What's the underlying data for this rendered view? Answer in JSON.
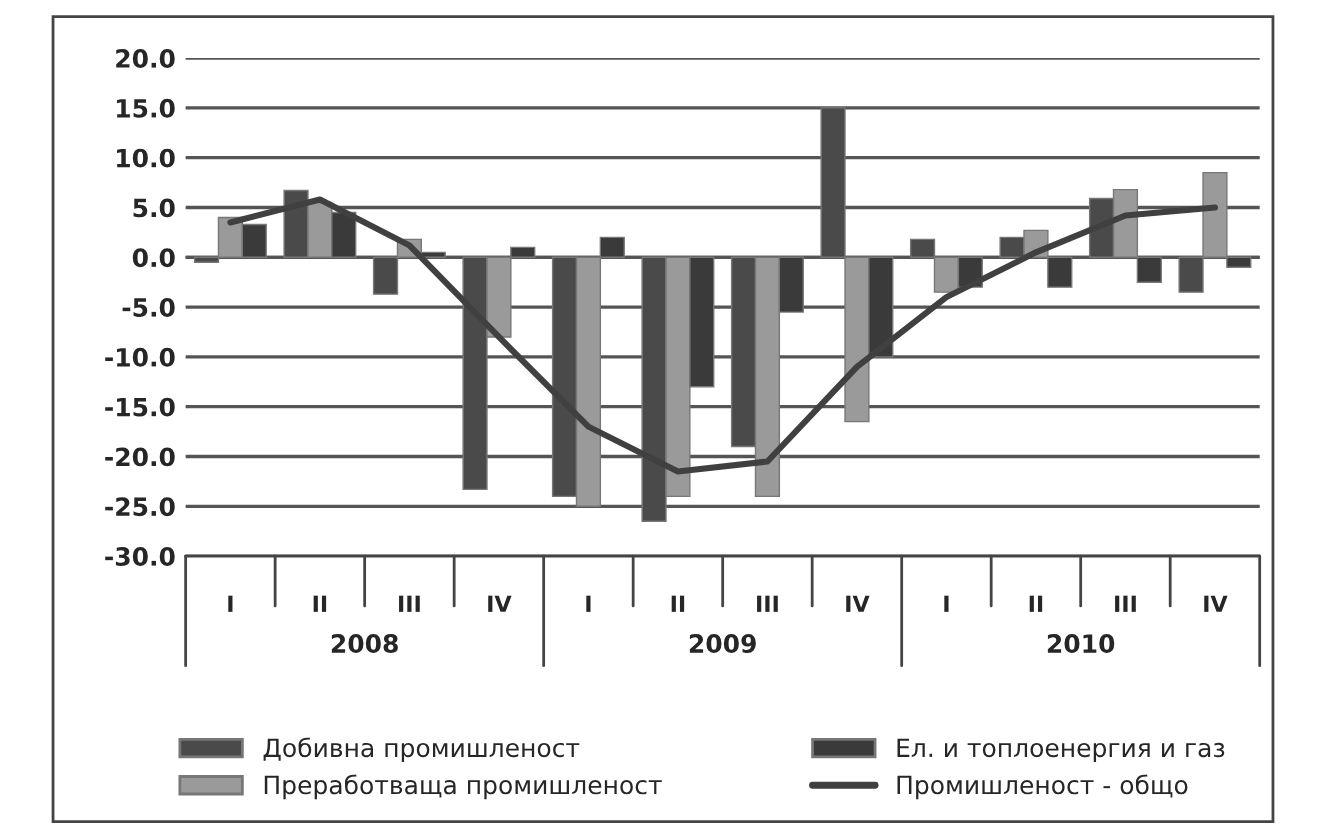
{
  "chart_data": {
    "type": "bar",
    "categories": [
      "I",
      "II",
      "III",
      "IV",
      "I",
      "II",
      "III",
      "IV",
      "I",
      "II",
      "III",
      "IV"
    ],
    "series": [
      {
        "name": "Добивна промишленост",
        "color": "#4a4a4a",
        "values": [
          -0.5,
          6.7,
          -3.7,
          -23.3,
          -24.0,
          -26.5,
          -19.0,
          15.0,
          1.8,
          2.0,
          5.9,
          -3.5
        ]
      },
      {
        "name": "Преработваща промишленост",
        "color": "#9a9a9a",
        "values": [
          4.0,
          5.5,
          1.8,
          -8.0,
          -25.0,
          -24.0,
          -24.0,
          -16.5,
          -3.5,
          2.7,
          6.8,
          8.5
        ]
      },
      {
        "name": "Ел. и топлоенергия и газ",
        "color": "#3a3a3a",
        "values": [
          3.3,
          4.5,
          0.5,
          1.0,
          2.0,
          -13.0,
          -5.5,
          -10.0,
          -3.0,
          -3.0,
          -2.5,
          -1.0
        ]
      },
      {
        "name": "Промишленост - общо",
        "type": "line",
        "color": "#404040",
        "values": [
          3.5,
          5.8,
          1.2,
          -8.0,
          -17.0,
          -21.5,
          -20.5,
          -11.0,
          -4.0,
          0.5,
          4.2,
          5.0
        ]
      }
    ],
    "annotations": [
      "2008",
      "2009",
      "2010"
    ],
    "ylim": [
      -30,
      20
    ],
    "yticks": [
      {
        "value": -30,
        "label": "-30.0"
      },
      {
        "value": -25,
        "label": "-25.0"
      },
      {
        "value": -20,
        "label": "-20.0"
      },
      {
        "value": -15,
        "label": "-15.0"
      },
      {
        "value": -10,
        "label": "-10.0"
      },
      {
        "value": -5,
        "label": "-5.0"
      },
      {
        "value": 0,
        "label": "0.0"
      },
      {
        "value": 5,
        "label": "5.0"
      },
      {
        "value": 10,
        "label": "10.0"
      },
      {
        "value": 15,
        "label": "15.0"
      },
      {
        "value": 20,
        "label": "20.0"
      }
    ],
    "grid": "y",
    "legend": "bottom"
  }
}
